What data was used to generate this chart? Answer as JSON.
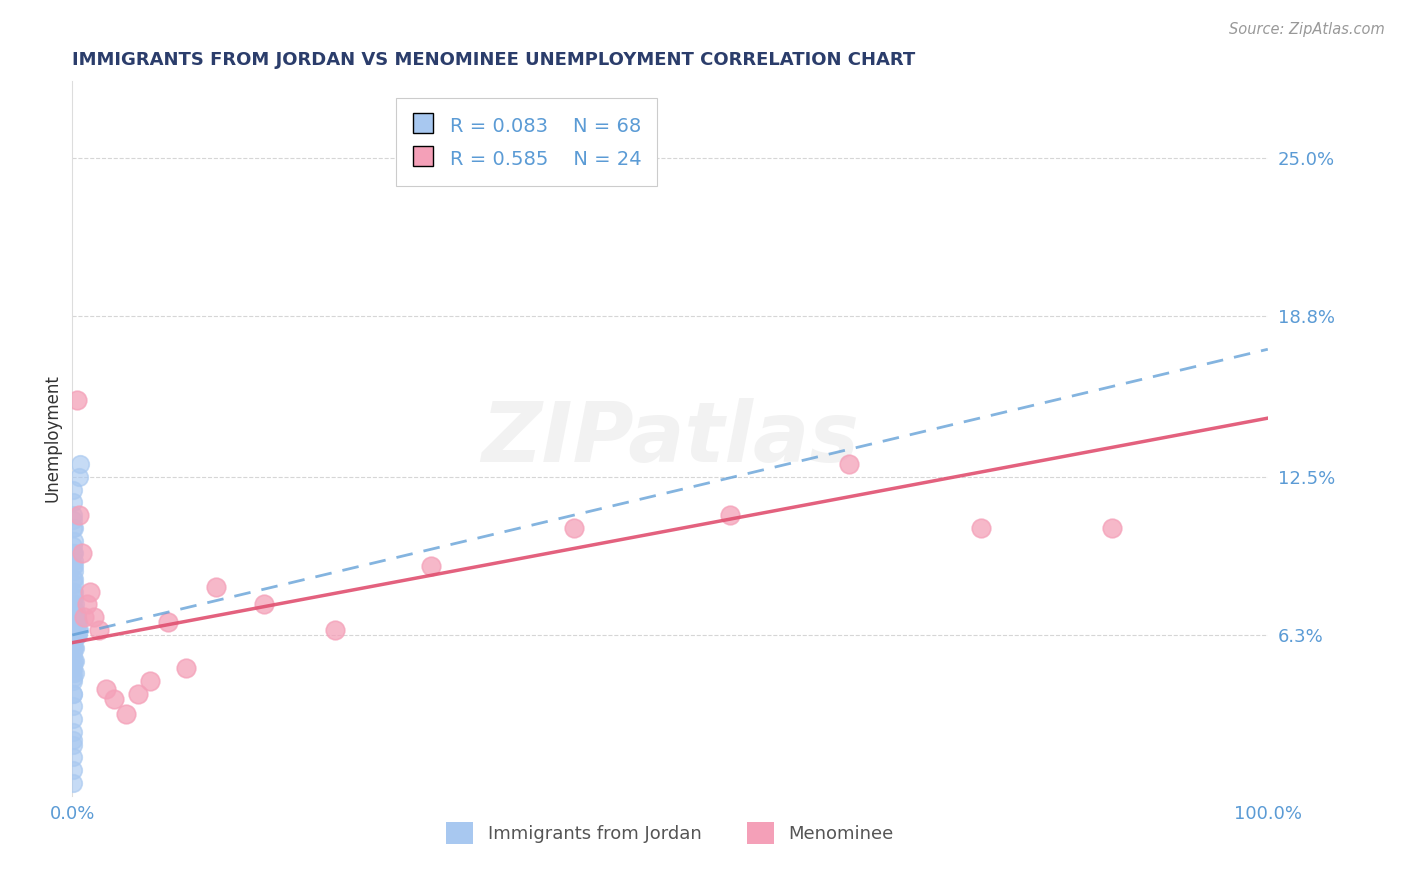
{
  "title": "IMMIGRANTS FROM JORDAN VS MENOMINEE UNEMPLOYMENT CORRELATION CHART",
  "source_text": "Source: ZipAtlas.com",
  "ylabel": "Unemployment",
  "xlim": [
    0,
    1.0
  ],
  "ylim": [
    0,
    0.28
  ],
  "yticks": [
    0.063,
    0.125,
    0.188,
    0.25
  ],
  "ytick_labels": [
    "6.3%",
    "12.5%",
    "18.8%",
    "25.0%"
  ],
  "xtick_labels": [
    "0.0%",
    "100.0%"
  ],
  "xtick_vals": [
    0.0,
    1.0
  ],
  "legend_r1": "R = 0.083",
  "legend_n1": "N = 68",
  "legend_r2": "R = 0.585",
  "legend_n2": "N = 24",
  "jordan_color": "#A8C8F0",
  "menominee_color": "#F4A0B8",
  "jordan_line_color": "#5B9BD5",
  "menominee_line_color": "#E05070",
  "tick_color": "#5B9BD5",
  "watermark": "ZIPatlas",
  "background_color": "#FFFFFF",
  "jordan_line_x0": 0.0,
  "jordan_line_y0": 0.063,
  "jordan_line_x1": 1.0,
  "jordan_line_y1": 0.175,
  "menominee_line_x0": 0.0,
  "menominee_line_y0": 0.06,
  "menominee_line_x1": 1.0,
  "menominee_line_y1": 0.148,
  "jordan_x": [
    0.0008,
    0.0008,
    0.0009,
    0.0009,
    0.001,
    0.001,
    0.001,
    0.001,
    0.001,
    0.001,
    0.001,
    0.001,
    0.001,
    0.0011,
    0.0011,
    0.0012,
    0.0012,
    0.0012,
    0.0012,
    0.0013,
    0.0013,
    0.0014,
    0.0014,
    0.0015,
    0.0015,
    0.0016,
    0.0017,
    0.0018,
    0.0019,
    0.002,
    0.002,
    0.0021,
    0.0022,
    0.0023,
    0.0025,
    0.0026,
    0.0028,
    0.003,
    0.0032,
    0.0034,
    0.0036,
    0.0038,
    0.004,
    0.0042,
    0.0045,
    0.0048,
    0.005,
    0.0055,
    0.006,
    0.0065,
    0.001,
    0.001,
    0.001,
    0.001,
    0.001,
    0.001,
    0.001,
    0.001,
    0.001,
    0.001,
    0.001,
    0.001,
    0.001,
    0.001,
    0.001,
    0.001,
    0.001,
    0.001
  ],
  "jordan_y": [
    0.11,
    0.105,
    0.115,
    0.108,
    0.098,
    0.095,
    0.09,
    0.085,
    0.08,
    0.075,
    0.07,
    0.065,
    0.06,
    0.105,
    0.1,
    0.095,
    0.09,
    0.085,
    0.08,
    0.092,
    0.088,
    0.083,
    0.078,
    0.073,
    0.068,
    0.063,
    0.058,
    0.053,
    0.048,
    0.065,
    0.07,
    0.075,
    0.068,
    0.063,
    0.058,
    0.053,
    0.068,
    0.072,
    0.065,
    0.068,
    0.063,
    0.068,
    0.063,
    0.07,
    0.065,
    0.068,
    0.063,
    0.065,
    0.125,
    0.13,
    0.055,
    0.05,
    0.045,
    0.04,
    0.035,
    0.03,
    0.025,
    0.02,
    0.015,
    0.01,
    0.005,
    0.048,
    0.12,
    0.058,
    0.052,
    0.046,
    0.04,
    0.022
  ],
  "menominee_x": [
    0.004,
    0.006,
    0.008,
    0.01,
    0.012,
    0.015,
    0.018,
    0.022,
    0.028,
    0.035,
    0.045,
    0.055,
    0.065,
    0.08,
    0.095,
    0.12,
    0.16,
    0.22,
    0.3,
    0.42,
    0.55,
    0.65,
    0.76,
    0.87
  ],
  "menominee_y": [
    0.155,
    0.11,
    0.095,
    0.07,
    0.075,
    0.08,
    0.07,
    0.065,
    0.042,
    0.038,
    0.032,
    0.04,
    0.045,
    0.068,
    0.05,
    0.082,
    0.075,
    0.065,
    0.09,
    0.105,
    0.11,
    0.13,
    0.105,
    0.105
  ]
}
